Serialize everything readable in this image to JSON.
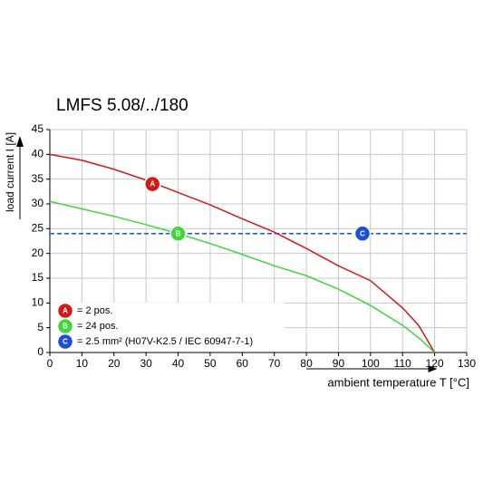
{
  "chart_data": {
    "type": "line",
    "title": "LMFS 5.08/../180",
    "xlabel": "ambient temperature T [°C]",
    "ylabel": "load current I [A]",
    "x": [
      0,
      10,
      20,
      30,
      40,
      50,
      60,
      70,
      80,
      90,
      100,
      110,
      115,
      120
    ],
    "series": [
      {
        "name": "= 2 pos.",
        "color": "#d11a1a",
        "values": [
          40,
          38.8,
          37,
          34.8,
          32.3,
          29.8,
          27,
          24.3,
          21,
          17.5,
          14.5,
          9,
          5.5,
          0
        ],
        "marker": {
          "label": "A",
          "x": 32,
          "y": 34
        }
      },
      {
        "name": "= 24 pos.",
        "color": "#3fd83a",
        "values": [
          30.5,
          29,
          27.5,
          25.8,
          24,
          22,
          19.8,
          17.5,
          15.5,
          12.8,
          9.5,
          5.5,
          3,
          0
        ],
        "marker": {
          "label": "B",
          "x": 40,
          "y": 24
        }
      }
    ],
    "reference": {
      "name": "= 2.5 mm² (H07V-K2.5 / IEC 60947-7-1)",
      "color": "#1a4fd6",
      "value": 24,
      "marker": {
        "label": "C",
        "x": 97.5,
        "y": 24
      }
    },
    "xlim": [
      0,
      130
    ],
    "xticks": [
      0,
      10,
      20,
      30,
      40,
      50,
      60,
      70,
      80,
      90,
      100,
      110,
      120,
      130
    ],
    "ylim": [
      0,
      45
    ],
    "yticks": [
      0,
      5,
      10,
      15,
      20,
      25,
      30,
      35,
      40,
      45
    ],
    "grid": true
  }
}
